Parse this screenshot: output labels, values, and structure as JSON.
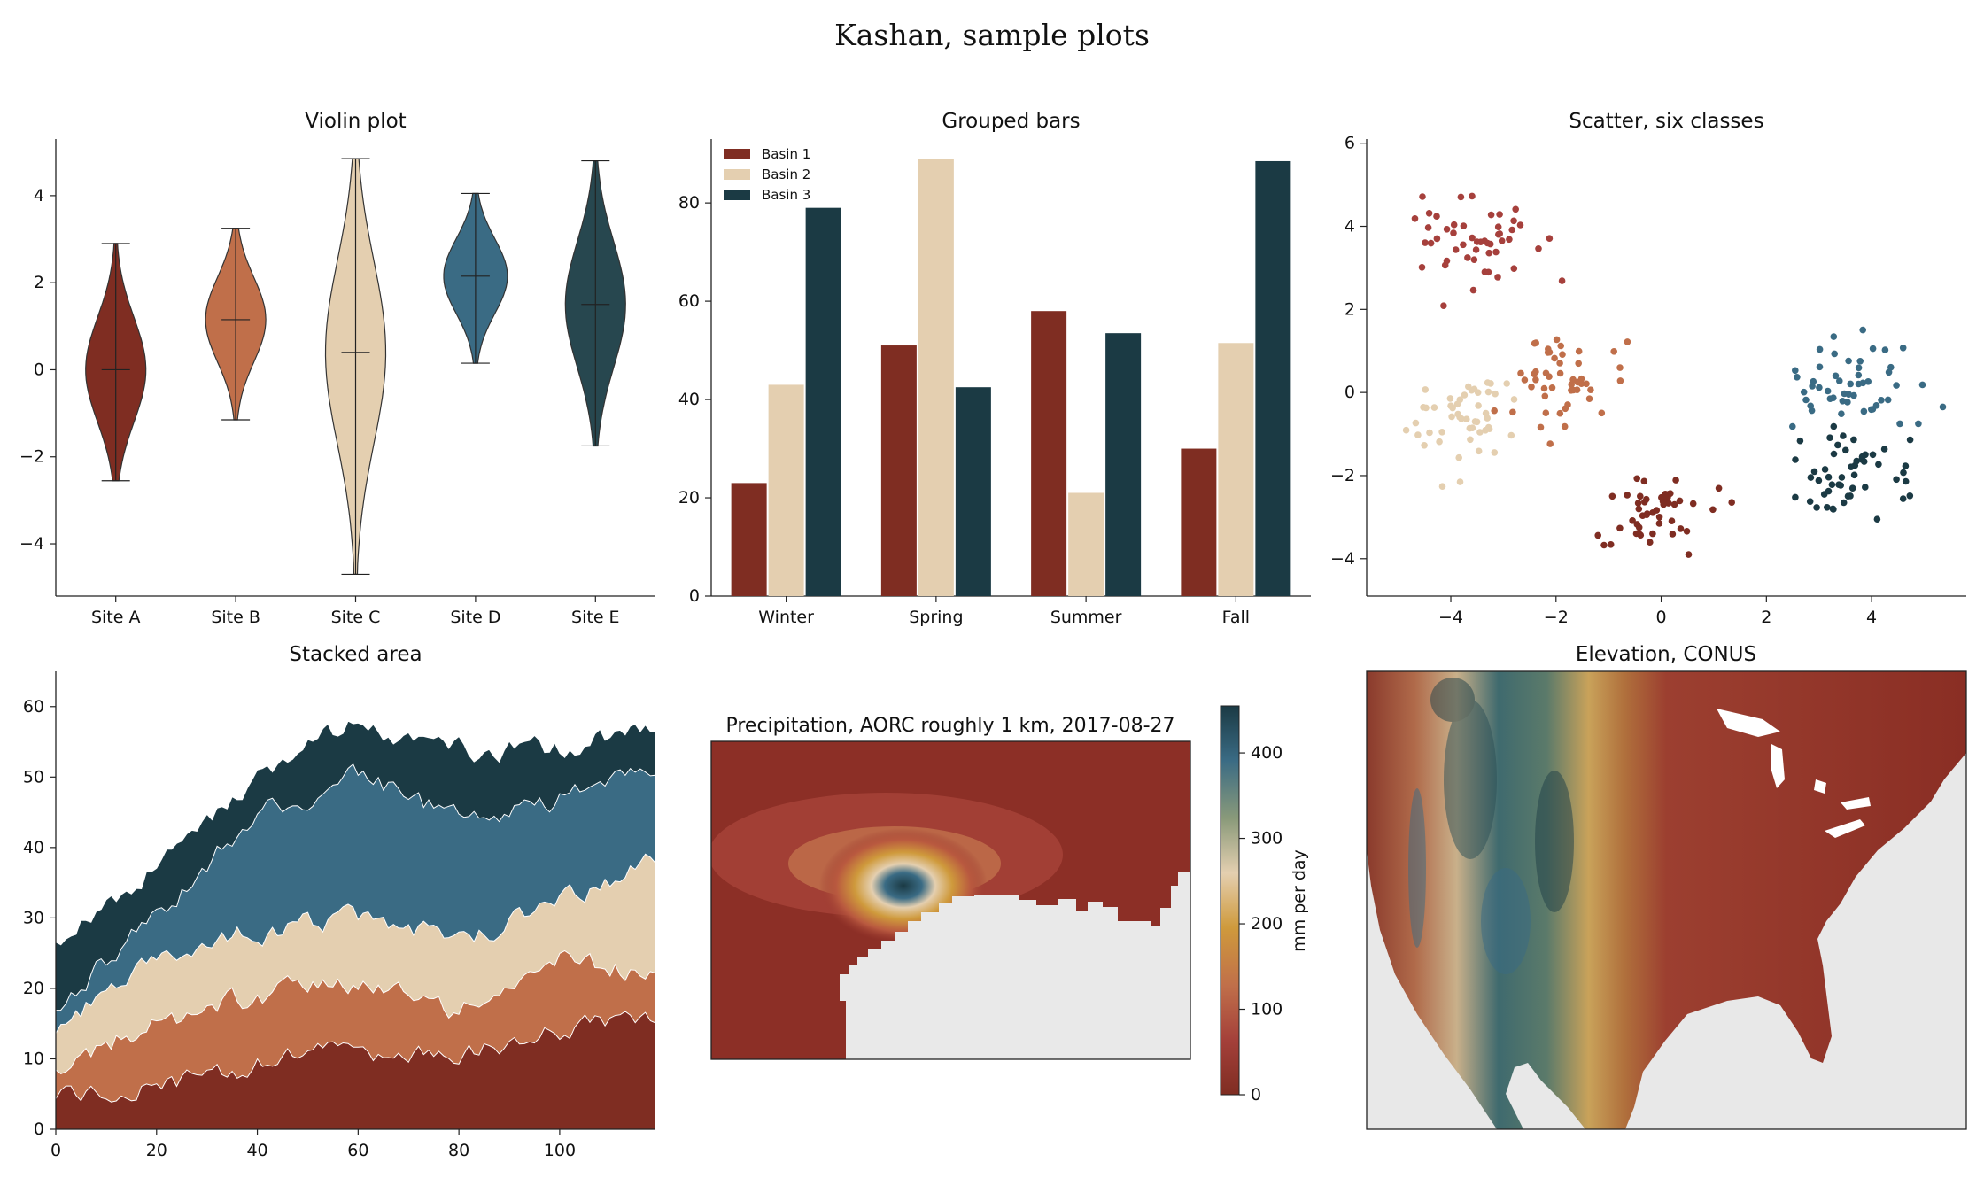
{
  "figure": {
    "title": "Kashan, sample plots"
  },
  "palette": {
    "c1": "#7f2d22",
    "c2": "#c06f4a",
    "c3": "#e4cfb0",
    "c4": "#3a6b84",
    "c5": "#1b3a44",
    "red": "#a6403c",
    "land_grey": "#e8e8e8"
  },
  "chart_data": [
    {
      "id": "violin",
      "type": "violin",
      "title": "Violin plot",
      "categories": [
        "Site A",
        "Site B",
        "Site C",
        "Site D",
        "Site E"
      ],
      "ylim": [
        -5.2,
        5.3
      ],
      "yticks": [
        4,
        2,
        0,
        -2,
        -4
      ],
      "ytick_labels": [
        "4",
        "2",
        "0",
        "−2",
        "−4"
      ],
      "groups": [
        {
          "name": "Site A",
          "min": -2.55,
          "max": 2.9,
          "median": 0.0
        },
        {
          "name": "Site B",
          "min": -1.15,
          "max": 3.25,
          "median": 1.15
        },
        {
          "name": "Site C",
          "min": -4.7,
          "max": 4.85,
          "median": 0.4
        },
        {
          "name": "Site D",
          "min": 0.15,
          "max": 4.05,
          "median": 2.15
        },
        {
          "name": "Site E",
          "min": -1.75,
          "max": 4.8,
          "median": 1.5
        }
      ],
      "fill_colors": [
        "#7f2d22",
        "#c06f4a",
        "#e4cfb0",
        "#3a6b84",
        "#27474f"
      ],
      "grid": false
    },
    {
      "id": "grouped",
      "type": "bar",
      "title": "Grouped bars",
      "categories": [
        "Winter",
        "Spring",
        "Summer",
        "Fall"
      ],
      "series": [
        {
          "name": "Basin 1",
          "values": [
            23,
            51,
            58,
            30
          ]
        },
        {
          "name": "Basin 2",
          "values": [
            43,
            89,
            21,
            51.5
          ]
        },
        {
          "name": "Basin 3",
          "values": [
            79,
            42.5,
            53.5,
            88.5
          ]
        }
      ],
      "ylim": [
        0,
        93
      ],
      "yticks": [
        0,
        20,
        40,
        60,
        80
      ],
      "legend": "top-left",
      "grid": false
    },
    {
      "id": "scatter",
      "type": "scatter",
      "title": "Scatter, six classes",
      "xlim": [
        -5.6,
        5.8
      ],
      "ylim": [
        -4.9,
        6.1
      ],
      "xticks": [
        -4,
        -2,
        0,
        2,
        4
      ],
      "xtick_labels": [
        "−4",
        "−2",
        "0",
        "2",
        "4"
      ],
      "yticks": [
        6,
        4,
        2,
        0,
        -2,
        -4
      ],
      "ytick_labels": [
        "6",
        "4",
        "2",
        "0",
        "−2",
        "−4"
      ],
      "classes": [
        {
          "center": [
            -3.6,
            3.6
          ],
          "spread": [
            0.55,
            0.6
          ],
          "color": "#a6403c"
        },
        {
          "center": [
            -1.8,
            0.3
          ],
          "spread": [
            0.55,
            0.55
          ],
          "color": "#c06f4a"
        },
        {
          "center": [
            -3.8,
            -0.7
          ],
          "spread": [
            0.5,
            0.55
          ],
          "color": "#e4cfb0"
        },
        {
          "center": [
            -0.2,
            -2.8
          ],
          "spread": [
            0.5,
            0.5
          ],
          "color": "#7f2d22"
        },
        {
          "center": [
            3.5,
            0.1
          ],
          "spread": [
            0.6,
            0.6
          ],
          "color": "#3a6b84"
        },
        {
          "center": [
            3.6,
            -2.0
          ],
          "spread": [
            0.6,
            0.5
          ],
          "color": "#1b3a44"
        }
      ],
      "points_per_class": 50,
      "grid": false
    },
    {
      "id": "stacked",
      "type": "area",
      "title": "Stacked area",
      "xlim": [
        0,
        119
      ],
      "ylim": [
        0,
        65
      ],
      "xticks": [
        0,
        20,
        40,
        60,
        80,
        100
      ],
      "yticks": [
        0,
        10,
        20,
        30,
        40,
        50,
        60
      ],
      "approx_layer_tops": {
        "x": [
          0,
          20,
          40,
          60,
          80,
          100,
          119
        ],
        "layer1": [
          5,
          6,
          9,
          11,
          10,
          14,
          15
        ],
        "layer2": [
          9,
          15,
          19,
          21,
          17,
          24,
          22
        ],
        "layer3": [
          14,
          25,
          28,
          30,
          27,
          32,
          38
        ],
        "layer4": [
          18,
          30,
          45,
          50,
          44,
          47,
          50
        ],
        "layer5": [
          26,
          38,
          50,
          58,
          54,
          54,
          57
        ]
      },
      "grid": false
    },
    {
      "id": "precip",
      "type": "heatmap",
      "title": "Precipitation, AORC roughly 1 km, 2017-08-27",
      "colorbar_label": "mm per day",
      "colorbar_ticks": [
        0,
        100,
        200,
        300,
        400
      ],
      "colorbar_range": [
        0,
        455
      ],
      "grid": false
    },
    {
      "id": "elevation",
      "type": "heatmap",
      "title": "Elevation, CONUS",
      "grid": false
    }
  ]
}
